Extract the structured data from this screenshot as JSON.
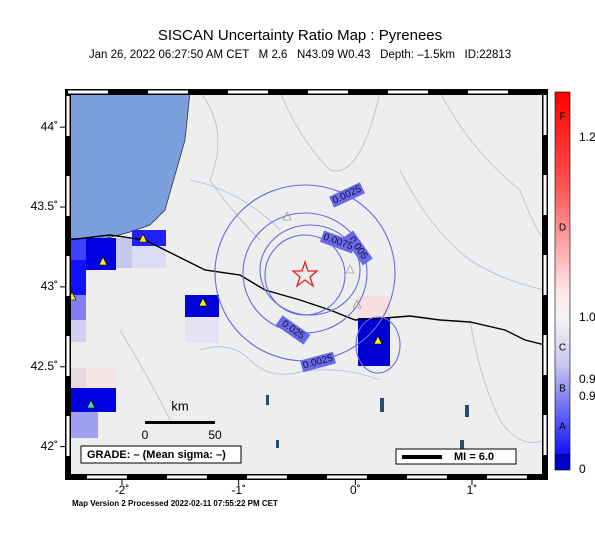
{
  "map": {
    "title": "SISCAN Uncertainty Ratio Map : Pyrenees",
    "subtitle": "Jan 26, 2022 06:27:50 AM CET   M 2.6   N43.09 W0.43   Depth: –1.5km   ID:22813",
    "xlim": [
      -2.463,
      1.626
    ],
    "ylim": [
      41.81,
      44.22
    ],
    "xticks": [
      {
        "value": -2,
        "label": "-2˚"
      },
      {
        "value": -1,
        "label": "-1˚"
      },
      {
        "value": 0,
        "label": "0˚"
      },
      {
        "value": 1,
        "label": "1˚"
      }
    ],
    "yticks": [
      {
        "value": 42,
        "label": "42˚"
      },
      {
        "value": 42.5,
        "label": "42.5˚"
      },
      {
        "value": 43,
        "label": "43˚"
      },
      {
        "value": 43.5,
        "label": "43.5˚"
      },
      {
        "value": 44,
        "label": "44˚"
      }
    ],
    "contour_labels": [
      "0.0025",
      "0.005",
      "0.0075",
      "0.025",
      "0.0025"
    ],
    "scale": {
      "unit": "km",
      "start": "0",
      "end": "50"
    },
    "grade": "GRADE: – (Mean sigma: –)",
    "mi": "MI = 6.0",
    "colorbar": {
      "grades": [
        "F",
        "D",
        "C",
        "B",
        "A"
      ],
      "labels": [
        "1.2",
        "1.0",
        "0.9",
        "0.9",
        "0"
      ]
    },
    "footer": "Map Version 2 Processed 2022-02-11 07:55:22 PM CET"
  }
}
